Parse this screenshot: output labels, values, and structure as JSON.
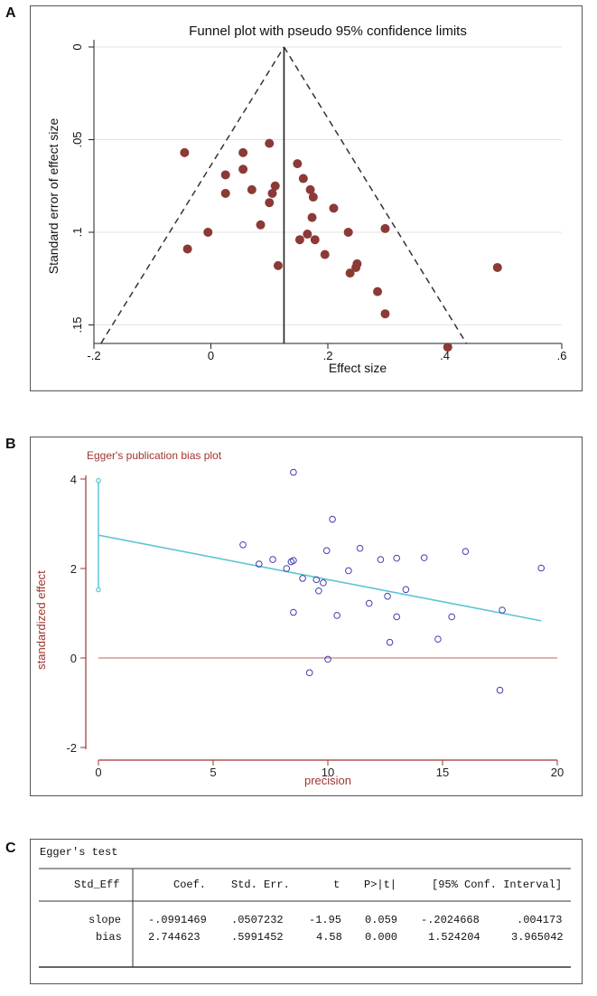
{
  "panels": {
    "a": "A",
    "b": "B",
    "c": "C"
  },
  "chart_data": [
    {
      "type": "scatter",
      "title": "Funnel plot with pseudo 95% confidence limits",
      "xlabel": "Effect size",
      "ylabel": "Standard error of effect size",
      "xlim": [
        -0.2,
        0.6
      ],
      "ylim": [
        0,
        0.16
      ],
      "y_inverted": true,
      "xticks": [
        -0.2,
        0,
        0.2,
        0.4,
        0.6
      ],
      "xtick_labels": [
        "-.2",
        "0",
        ".2",
        ".4",
        ".6"
      ],
      "yticks": [
        0,
        0.05,
        0.1,
        0.15
      ],
      "ytick_labels": [
        "0",
        ".05",
        ".1",
        ".15"
      ],
      "grid": true,
      "pooled_effect": 0.125,
      "ci_limits": [
        {
          "x": -0.188,
          "se": 0.16
        },
        {
          "x": 0.125,
          "se": 0.0
        },
        {
          "x": 0.437,
          "se": 0.16
        }
      ],
      "points": [
        [
          -0.045,
          0.057
        ],
        [
          -0.04,
          0.109
        ],
        [
          -0.005,
          0.1
        ],
        [
          0.025,
          0.069
        ],
        [
          0.025,
          0.079
        ],
        [
          0.055,
          0.057
        ],
        [
          0.055,
          0.066
        ],
        [
          0.07,
          0.077
        ],
        [
          0.085,
          0.096
        ],
        [
          0.1,
          0.052
        ],
        [
          0.1,
          0.084
        ],
        [
          0.105,
          0.079
        ],
        [
          0.11,
          0.075
        ],
        [
          0.115,
          0.118
        ],
        [
          0.148,
          0.063
        ],
        [
          0.152,
          0.104
        ],
        [
          0.158,
          0.071
        ],
        [
          0.165,
          0.101
        ],
        [
          0.17,
          0.077
        ],
        [
          0.173,
          0.092
        ],
        [
          0.175,
          0.081
        ],
        [
          0.178,
          0.104
        ],
        [
          0.195,
          0.112
        ],
        [
          0.21,
          0.087
        ],
        [
          0.235,
          0.1
        ],
        [
          0.238,
          0.122
        ],
        [
          0.248,
          0.119
        ],
        [
          0.25,
          0.117
        ],
        [
          0.285,
          0.132
        ],
        [
          0.298,
          0.098
        ],
        [
          0.298,
          0.144
        ],
        [
          0.405,
          0.162
        ],
        [
          0.49,
          0.119
        ]
      ]
    },
    {
      "type": "scatter",
      "title": "Egger's publication bias plot",
      "xlabel": "precision",
      "ylabel": "standardized effect",
      "xlim": [
        0,
        20
      ],
      "ylim": [
        -2,
        4
      ],
      "xticks": [
        0,
        5,
        10,
        15,
        20
      ],
      "xtick_labels": [
        "0",
        "5",
        "10",
        "15",
        "20"
      ],
      "yticks": [
        -2,
        0,
        2,
        4
      ],
      "ytick_labels": [
        "-2",
        "0",
        "2",
        "4"
      ],
      "grid": false,
      "regression_line": {
        "intercept": 2.744623,
        "slope": -0.0991469,
        "x_range": [
          0,
          19.3
        ]
      },
      "intercept_ci": [
        1.524204,
        3.965042
      ],
      "reference_line_y": 0,
      "points": [
        [
          6.3,
          2.53
        ],
        [
          7.0,
          2.1
        ],
        [
          7.6,
          2.2
        ],
        [
          8.2,
          2.0
        ],
        [
          8.4,
          2.15
        ],
        [
          8.5,
          2.18
        ],
        [
          8.5,
          1.02
        ],
        [
          8.5,
          4.15
        ],
        [
          8.9,
          1.78
        ],
        [
          9.2,
          -0.33
        ],
        [
          9.5,
          1.75
        ],
        [
          9.6,
          1.5
        ],
        [
          9.8,
          1.68
        ],
        [
          9.95,
          2.4
        ],
        [
          10.0,
          -0.03
        ],
        [
          10.2,
          3.1
        ],
        [
          10.4,
          0.95
        ],
        [
          10.9,
          1.95
        ],
        [
          11.4,
          2.45
        ],
        [
          11.8,
          1.22
        ],
        [
          12.3,
          2.2
        ],
        [
          12.6,
          1.38
        ],
        [
          12.7,
          0.35
        ],
        [
          13.0,
          0.92
        ],
        [
          13.0,
          2.23
        ],
        [
          13.4,
          1.53
        ],
        [
          14.2,
          2.24
        ],
        [
          14.8,
          0.42
        ],
        [
          15.4,
          0.92
        ],
        [
          16.0,
          2.38
        ],
        [
          17.5,
          -0.72
        ],
        [
          17.6,
          1.07
        ],
        [
          19.3,
          2.01
        ]
      ]
    }
  ],
  "egger_table": {
    "title": "Egger's test",
    "headers": [
      "Std_Eff",
      "Coef.",
      "Std. Err.",
      "t",
      "P>|t|",
      "[95% Conf. Interval]"
    ],
    "rows": [
      {
        "label": "slope",
        "coef": "-.0991469",
        "se": ".0507232",
        "t": "-1.95",
        "p": "0.059",
        "ci_low": "-.2024668",
        "ci_high": ".004173"
      },
      {
        "label": "bias",
        "coef": "2.744623",
        "se": ".5991452",
        "t": "4.58",
        "p": "0.000",
        "ci_low": "1.524204",
        "ci_high": "3.965042"
      }
    ]
  },
  "colors": {
    "funnel_dot": "#8b3a36",
    "egger_point": "#3f3fb0",
    "egger_line": "#5ec3d6",
    "egger_axis": "#a0352f"
  }
}
